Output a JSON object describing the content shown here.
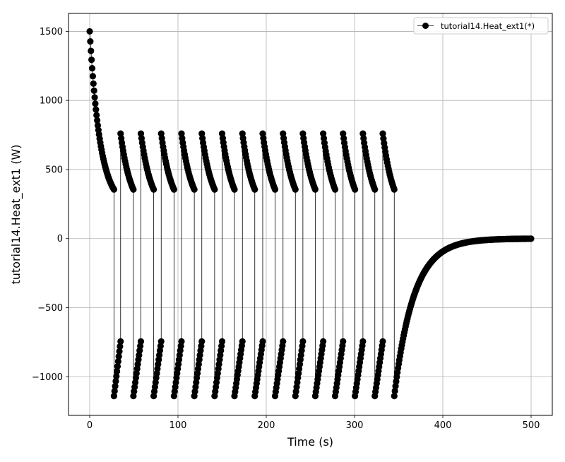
{
  "chart_data": {
    "type": "line",
    "xlabel": "Time (s)",
    "ylabel": "tutorial14.Heat_ext1 (W)",
    "xlim": [
      -24,
      524
    ],
    "ylim": [
      -1280,
      1630
    ],
    "xticks": [
      0,
      100,
      200,
      300,
      400,
      500
    ],
    "yticks": [
      -1000,
      -500,
      0,
      500,
      1000,
      1500
    ],
    "grid": true,
    "legend_position": "upper-right",
    "series": [
      {
        "name": "tutorial14.Heat_ext1(*)",
        "color": "#000000",
        "marker": "circle",
        "segments": [
          {
            "kind": "exp",
            "t_start": 0,
            "t_end": 27.5,
            "v_start": 1500,
            "v_end": 355,
            "tau": 12
          },
          {
            "kind": "linear",
            "t_start": 27.5,
            "t_end": 35,
            "v_start": -1140,
            "v_end": -745
          },
          {
            "kind": "exp",
            "t_start": 35,
            "t_end": 49.5,
            "v_start": 760,
            "v_end": 355,
            "tau": 12
          },
          {
            "kind": "linear",
            "t_start": 49.5,
            "t_end": 58,
            "v_start": -1140,
            "v_end": -745
          },
          {
            "kind": "exp",
            "t_start": 58,
            "t_end": 72.5,
            "v_start": 760,
            "v_end": 355,
            "tau": 12
          },
          {
            "kind": "linear",
            "t_start": 72.5,
            "t_end": 81,
            "v_start": -1140,
            "v_end": -745
          },
          {
            "kind": "exp",
            "t_start": 81,
            "t_end": 95.5,
            "v_start": 760,
            "v_end": 355,
            "tau": 12
          },
          {
            "kind": "linear",
            "t_start": 95.5,
            "t_end": 104,
            "v_start": -1140,
            "v_end": -745
          },
          {
            "kind": "exp",
            "t_start": 104,
            "t_end": 118.5,
            "v_start": 760,
            "v_end": 355,
            "tau": 12
          },
          {
            "kind": "linear",
            "t_start": 118.5,
            "t_end": 127,
            "v_start": -1140,
            "v_end": -745
          },
          {
            "kind": "exp",
            "t_start": 127,
            "t_end": 141.5,
            "v_start": 760,
            "v_end": 355,
            "tau": 12
          },
          {
            "kind": "linear",
            "t_start": 141.5,
            "t_end": 150,
            "v_start": -1140,
            "v_end": -745
          },
          {
            "kind": "exp",
            "t_start": 150,
            "t_end": 164,
            "v_start": 760,
            "v_end": 355,
            "tau": 12
          },
          {
            "kind": "linear",
            "t_start": 164,
            "t_end": 173,
            "v_start": -1140,
            "v_end": -745
          },
          {
            "kind": "exp",
            "t_start": 173,
            "t_end": 187,
            "v_start": 760,
            "v_end": 355,
            "tau": 12
          },
          {
            "kind": "linear",
            "t_start": 187,
            "t_end": 196,
            "v_start": -1140,
            "v_end": -745
          },
          {
            "kind": "exp",
            "t_start": 196,
            "t_end": 210,
            "v_start": 760,
            "v_end": 355,
            "tau": 12
          },
          {
            "kind": "linear",
            "t_start": 210,
            "t_end": 219,
            "v_start": -1140,
            "v_end": -745
          },
          {
            "kind": "exp",
            "t_start": 219,
            "t_end": 233,
            "v_start": 760,
            "v_end": 355,
            "tau": 12
          },
          {
            "kind": "linear",
            "t_start": 233,
            "t_end": 241.5,
            "v_start": -1140,
            "v_end": -745
          },
          {
            "kind": "exp",
            "t_start": 241.5,
            "t_end": 255.5,
            "v_start": 760,
            "v_end": 355,
            "tau": 12
          },
          {
            "kind": "linear",
            "t_start": 255.5,
            "t_end": 264.5,
            "v_start": -1140,
            "v_end": -745
          },
          {
            "kind": "exp",
            "t_start": 264.5,
            "t_end": 278,
            "v_start": 760,
            "v_end": 355,
            "tau": 12
          },
          {
            "kind": "linear",
            "t_start": 278,
            "t_end": 287,
            "v_start": -1140,
            "v_end": -745
          },
          {
            "kind": "exp",
            "t_start": 287,
            "t_end": 300.5,
            "v_start": 760,
            "v_end": 355,
            "tau": 12
          },
          {
            "kind": "linear",
            "t_start": 300.5,
            "t_end": 309.5,
            "v_start": -1140,
            "v_end": -745
          },
          {
            "kind": "exp",
            "t_start": 309.5,
            "t_end": 323,
            "v_start": 760,
            "v_end": 355,
            "tau": 12
          },
          {
            "kind": "linear",
            "t_start": 323,
            "t_end": 332,
            "v_start": -1140,
            "v_end": -745
          },
          {
            "kind": "exp",
            "t_start": 332,
            "t_end": 345,
            "v_start": 760,
            "v_end": 355,
            "tau": 12
          },
          {
            "kind": "approach",
            "t_start": 345,
            "t_end": 500,
            "v_start": -1140,
            "v_end": 0,
            "tau": 22
          }
        ]
      }
    ]
  }
}
